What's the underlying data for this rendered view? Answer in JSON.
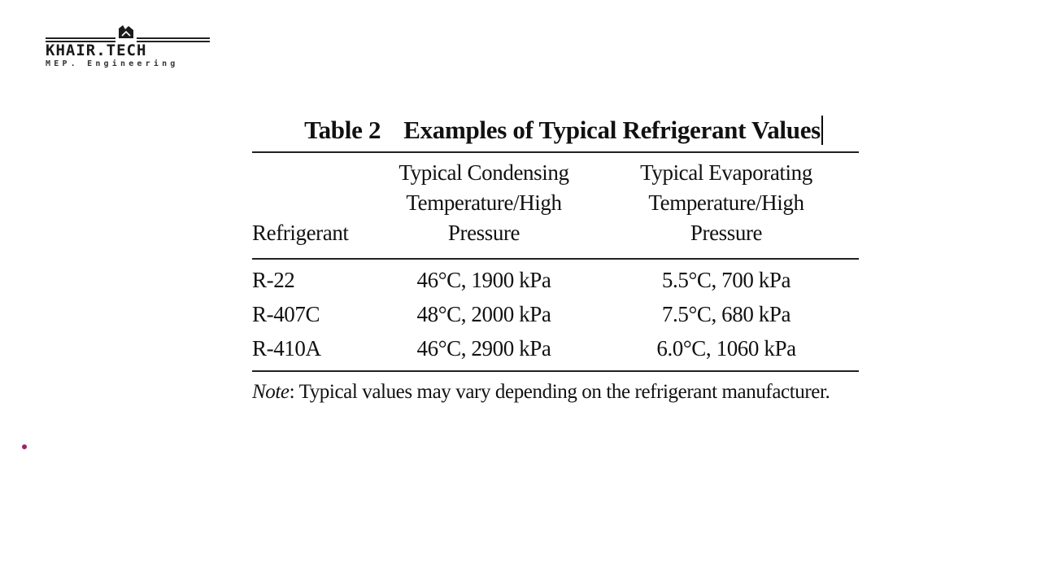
{
  "logo": {
    "name": "KHAIR.TECH",
    "subtitle": "MEP. Engineering"
  },
  "table": {
    "caption_number": "Table 2",
    "caption_title": "Examples of Typical Refrigerant Values",
    "headers": {
      "refrigerant": "Refrigerant",
      "condensing": [
        "Typical Condensing",
        "Temperature/High",
        "Pressure"
      ],
      "evaporating": [
        "Typical Evaporating",
        "Temperature/High",
        "Pressure"
      ]
    },
    "rows": [
      {
        "refrigerant": "R-22",
        "condensing": "46°C, 1900 kPa",
        "evaporating": "5.5°C, 700 kPa"
      },
      {
        "refrigerant": "R-407C",
        "condensing": "48°C, 2000 kPa",
        "evaporating": "7.5°C, 680 kPa"
      },
      {
        "refrigerant": "R-410A",
        "condensing": "46°C, 2900 kPa",
        "evaporating": "6.0°C, 1060 kPa"
      }
    ],
    "note_label": "Note",
    "note_text": ": Typical values may vary depending on the refrigerant manufacturer."
  },
  "colors": {
    "bullet": "#a0206a",
    "text": "#111111"
  }
}
